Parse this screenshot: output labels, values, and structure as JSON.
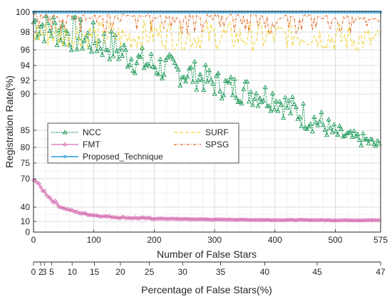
{
  "chart_data": {
    "type": "line",
    "title": "",
    "xlabel": "Number of False Stars",
    "ylabel": "Registration Rate(%)",
    "secondary_xlabel": "Percentage of False Stars(%)",
    "xlim": [
      0,
      575
    ],
    "ylim": [
      0,
      100
    ],
    "grid": true,
    "legend_placement": "left-middle",
    "x_ticks": [
      0,
      100,
      200,
      300,
      400,
      500,
      575
    ],
    "y_ticks": [
      0,
      10,
      40,
      70,
      75,
      80,
      85,
      90,
      92,
      94,
      96,
      98,
      100
    ],
    "secondary_x_ticks": [
      {
        "value": 0,
        "x": 0
      },
      {
        "value": 2,
        "x": 12
      },
      {
        "value": 3,
        "x": 18
      },
      {
        "value": 5,
        "x": 30
      },
      {
        "value": 10,
        "x": 64
      },
      {
        "value": 15,
        "x": 101
      },
      {
        "value": 20,
        "x": 144
      },
      {
        "value": 25,
        "x": 192
      },
      {
        "value": 30,
        "x": 247
      },
      {
        "value": 35,
        "x": 310
      },
      {
        "value": 40,
        "x": 383
      },
      {
        "value": 45,
        "x": 470
      },
      {
        "value": 47,
        "x": 575
      }
    ],
    "series": [
      {
        "name": "NCC",
        "color": "#1f9a5a",
        "marker": "triangle",
        "dash": "2,1.5",
        "x": [
          0,
          25,
          50,
          75,
          100,
          125,
          150,
          175,
          200,
          225,
          250,
          275,
          300,
          325,
          350,
          375,
          400,
          425,
          450,
          475,
          500,
          525,
          550,
          575
        ],
        "y": [
          99.0,
          98.5,
          98.0,
          97.5,
          97.0,
          96.5,
          95.5,
          94.5,
          94.0,
          93.5,
          93.0,
          92.5,
          91.5,
          91.0,
          90.5,
          90.0,
          89.5,
          88.0,
          87.0,
          86.0,
          84.0,
          83.0,
          82.0,
          80.0
        ]
      },
      {
        "name": "FMT",
        "color": "#d46bb0",
        "marker": "diamond",
        "dash": "",
        "x": [
          0,
          5,
          10,
          20,
          30,
          40,
          50,
          60,
          70,
          80,
          100,
          125,
          150,
          200,
          250,
          300,
          350,
          400,
          450,
          500,
          575
        ],
        "y": [
          70.0,
          67.0,
          62.0,
          55.0,
          48.0,
          43.0,
          38.0,
          34.0,
          30.0,
          27.0,
          23.0,
          20.0,
          18.0,
          16.0,
          15.0,
          14.0,
          13.5,
          13.0,
          13.0,
          12.5,
          12.5
        ]
      },
      {
        "name": "Proposed_Technique",
        "color": "#5ab4e6",
        "marker": "circle",
        "dash": "",
        "x": [
          0,
          100,
          200,
          300,
          400,
          500,
          575
        ],
        "y": [
          100,
          100,
          100,
          100,
          100,
          100,
          100
        ]
      },
      {
        "name": "SURF",
        "color": "#f2d43a",
        "marker": "",
        "dash": "5,3",
        "x": [
          0,
          25,
          50,
          75,
          100,
          125,
          150,
          175,
          200,
          250,
          300,
          350,
          400,
          450,
          500,
          550,
          575
        ],
        "y": [
          97.5,
          97.5,
          97.3,
          97.5,
          97.2,
          97.4,
          97.0,
          97.3,
          97.5,
          97.1,
          97.3,
          97.0,
          97.2,
          97.4,
          97.0,
          96.8,
          96.5
        ]
      },
      {
        "name": "SPSG",
        "color": "#e0651f",
        "marker": "",
        "dash": "4,2,1,2",
        "x": [
          0,
          25,
          50,
          75,
          100,
          150,
          200,
          250,
          300,
          350,
          400,
          450,
          500,
          550,
          575
        ],
        "y": [
          99.5,
          99.5,
          99.4,
          99.5,
          99.3,
          99.5,
          99.4,
          99.3,
          99.5,
          99.4,
          99.3,
          99.4,
          99.3,
          99.2,
          99.0
        ]
      }
    ]
  }
}
